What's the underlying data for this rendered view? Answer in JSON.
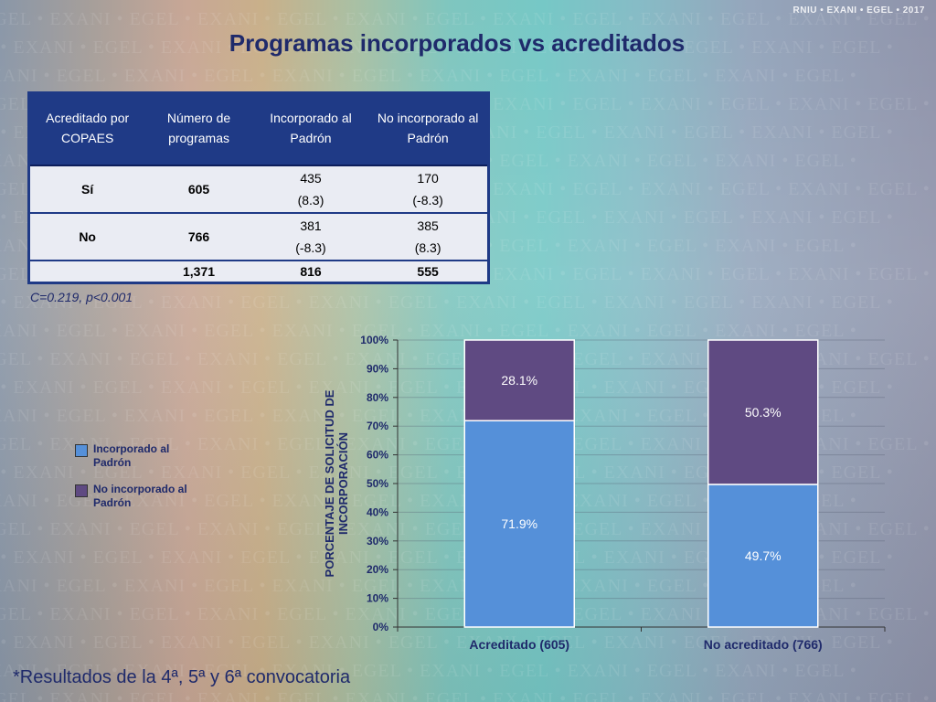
{
  "brand": "RNIU • EXANI • EGEL • 2017",
  "watermark_text": "EGEL • EXANI • EGEL • EXANI • EGEL • EXANI • EGEL • EXANI • EGEL • EXANI • EGEL • EXANI • EGEL •",
  "title": "Programas incorporados vs acreditados",
  "table": {
    "headers": [
      "Acreditado por COPAES",
      "Número de programas",
      "Incorporado al Padrón",
      "No incorporado al Padrón"
    ],
    "rows": [
      {
        "label": "Sí",
        "n": "605",
        "inc": "435",
        "inc_res": "(8.3)",
        "noinc": "170",
        "noinc_res": "(-8.3)"
      },
      {
        "label": "No",
        "n": "766",
        "inc": "381",
        "inc_res": "(-8.3)",
        "noinc": "385",
        "noinc_res": "(8.3)"
      }
    ],
    "total": {
      "label": "",
      "n": "1,371",
      "inc": "816",
      "noinc": "555"
    }
  },
  "stats_text": "C=0.219, p<0.001",
  "footnote": "*Resultados de la 4ª, 5ª y 6ª convocatoria",
  "legend": [
    {
      "label": "Incorporado al Padrón",
      "color": "#5590d9"
    },
    {
      "label": "No incorporado al Padrón",
      "color": "#5f4a82"
    }
  ],
  "chart_data": {
    "type": "bar",
    "stacked": true,
    "categories": [
      "Acreditado (605)",
      "No acreditado (766)"
    ],
    "series": [
      {
        "name": "Incorporado al Padrón",
        "values": [
          71.9,
          49.7
        ],
        "labels": [
          "71.9%",
          "49.7%"
        ],
        "color": "#5590d9"
      },
      {
        "name": "No incorporado al Padrón",
        "values": [
          28.1,
          50.3
        ],
        "labels": [
          "28.1%",
          "50.3%"
        ],
        "color": "#5f4a82"
      }
    ],
    "ylabel": "PORCENTAJE DE SOLICITUD DE INCORPORACIÓN",
    "ylim": [
      0,
      100
    ],
    "yticks": [
      "0%",
      "10%",
      "20%",
      "30%",
      "40%",
      "50%",
      "60%",
      "70%",
      "80%",
      "90%",
      "100%"
    ],
    "grid": true,
    "legend_position": "left"
  }
}
